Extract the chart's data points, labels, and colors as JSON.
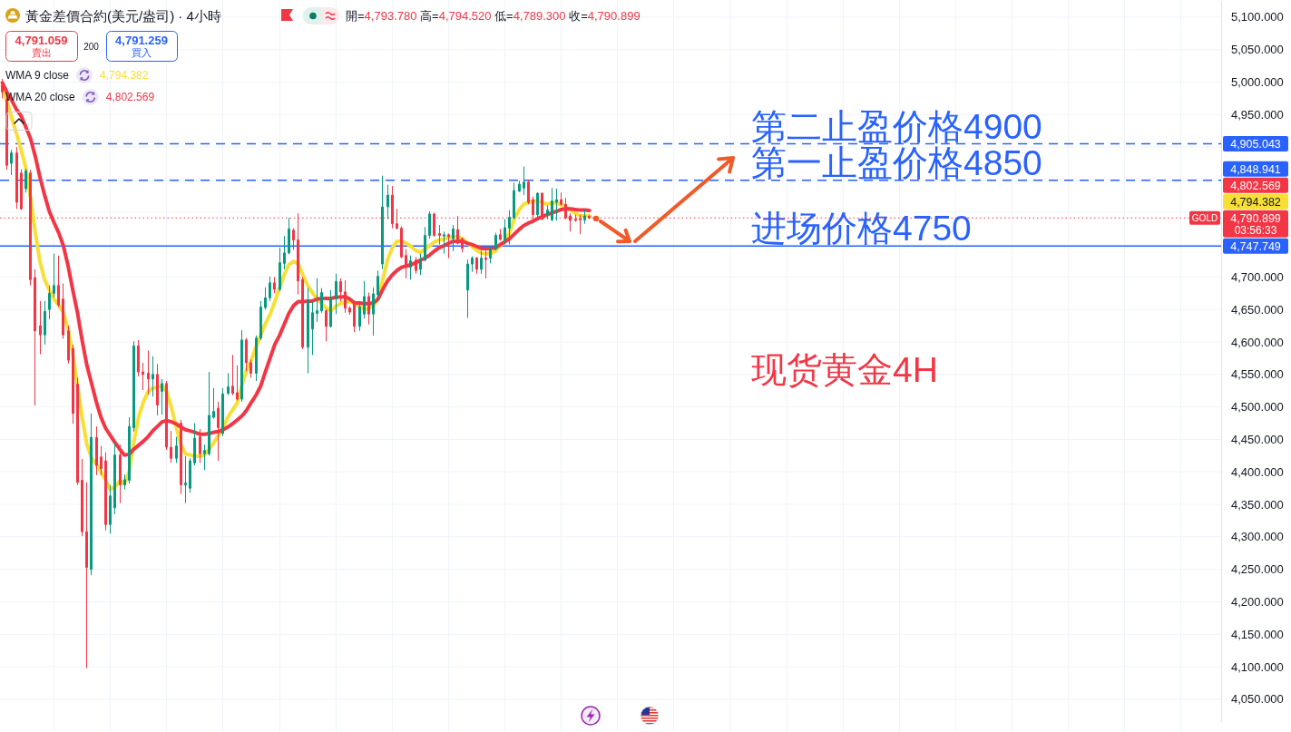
{
  "chart_data": {
    "type": "candlestick",
    "title": "黃金差價合約(美元/盎司) · 4小時",
    "subtitle": "開=4,793.780 高=4,794.520 低=4,789.300 收=4,790.899",
    "categories": [
      null,
      null,
      null,
      null,
      null,
      null,
      null,
      null,
      null,
      null,
      null,
      null,
      null,
      null,
      null,
      null,
      null,
      null,
      null,
      null,
      null,
      null,
      null,
      null,
      null,
      null,
      null,
      null,
      null,
      null,
      null,
      null,
      null,
      null,
      null,
      null,
      null,
      null,
      null,
      null,
      null,
      null,
      null,
      null,
      null,
      null,
      null,
      null,
      null,
      null,
      null,
      null,
      null,
      null,
      null,
      null,
      null,
      null,
      null,
      null,
      null,
      null,
      null,
      null,
      null,
      null,
      null,
      null,
      null,
      null,
      null,
      null,
      null,
      null,
      null,
      null,
      null,
      null,
      null,
      null,
      null,
      null,
      null,
      null,
      null,
      null,
      null,
      null,
      null,
      null,
      null,
      null,
      null,
      null,
      null,
      null,
      null,
      null,
      null,
      null,
      null,
      null,
      null,
      null,
      null,
      null,
      null,
      null,
      null,
      null,
      null,
      null,
      null,
      null,
      null,
      null,
      null,
      null,
      null,
      null,
      null,
      null,
      null,
      null,
      null,
      null,
      null,
      null,
      null,
      null,
      null,
      null,
      null,
      null,
      null,
      null,
      null,
      null,
      null,
      null,
      null,
      null,
      null,
      null,
      null,
      null,
      null,
      null,
      null,
      null,
      null,
      null,
      null,
      null,
      null,
      null,
      null,
      null,
      null,
      null,
      null,
      null,
      null,
      null,
      null,
      null,
      null,
      null,
      null,
      null,
      null,
      null,
      null,
      null,
      null,
      null,
      null,
      null,
      null,
      null,
      null,
      null,
      null,
      null,
      null,
      null,
      null,
      null,
      null,
      null,
      null,
      null,
      null,
      null,
      null,
      null,
      null,
      null,
      null,
      null,
      null,
      null,
      null,
      null,
      null,
      null,
      null,
      null,
      null,
      null,
      null,
      null,
      null,
      null,
      null,
      null,
      null,
      null,
      null,
      null,
      null,
      null,
      null,
      null,
      null,
      null,
      null,
      null,
      null,
      null,
      null,
      null,
      null,
      null,
      null,
      null,
      null,
      null,
      null,
      null,
      null,
      null,
      null,
      null,
      null,
      null,
      null,
      null,
      null,
      null,
      null,
      null,
      null,
      null,
      null,
      null,
      null,
      null,
      null,
      null
    ],
    "ohlc": [
      [
        4995,
        5005,
        4975,
        4985
      ],
      [
        4973,
        4985,
        4865,
        4872
      ],
      [
        4875,
        4896,
        4857,
        4891
      ],
      [
        4891,
        4900,
        4805,
        4815
      ],
      [
        4860,
        4866,
        4803,
        4805
      ],
      [
        4836,
        4867,
        4830,
        4863
      ],
      [
        4860,
        4865,
        4687,
        4696
      ],
      [
        4699,
        4712,
        4502,
        4617
      ],
      [
        4625,
        4663,
        4581,
        4611
      ],
      [
        4611,
        4663,
        4596,
        4647
      ],
      [
        4650,
        4687,
        4635,
        4675
      ],
      [
        4675,
        4736,
        4669,
        4687
      ],
      [
        4687,
        4733,
        4654,
        4657
      ],
      [
        4666,
        4690,
        4605,
        4611
      ],
      [
        4617,
        4625,
        4567,
        4572
      ],
      [
        4590,
        4596,
        4474,
        4490
      ],
      [
        4535,
        4545,
        4380,
        4384
      ],
      [
        4387,
        4420,
        4301,
        4308
      ],
      [
        4308,
        4384,
        4098,
        4253
      ],
      [
        4250,
        4490,
        4241,
        4453
      ],
      [
        4453,
        4470,
        4395,
        4410
      ],
      [
        4423,
        4440,
        4395,
        4405
      ],
      [
        4417,
        4430,
        4310,
        4319
      ],
      [
        4319,
        4380,
        4305,
        4363
      ],
      [
        4345,
        4445,
        4335,
        4426
      ],
      [
        4426,
        4442,
        4352,
        4380
      ],
      [
        4380,
        4396,
        4373,
        4388
      ],
      [
        4387,
        4484,
        4382,
        4470
      ],
      [
        4468,
        4601,
        4462,
        4594
      ],
      [
        4594,
        4603,
        4547,
        4554
      ],
      [
        4554,
        4568,
        4526,
        4550
      ],
      [
        4552,
        4587,
        4519,
        4543
      ],
      [
        4543,
        4578,
        4516,
        4550
      ],
      [
        4550,
        4566,
        4487,
        4503
      ],
      [
        4524,
        4543,
        4488,
        4536
      ],
      [
        4536,
        4540,
        4434,
        4438
      ],
      [
        4438,
        4463,
        4414,
        4421
      ],
      [
        4421,
        4454,
        4414,
        4440
      ],
      [
        4475,
        4480,
        4366,
        4380
      ],
      [
        4380,
        4424,
        4352,
        4383
      ],
      [
        4375,
        4421,
        4368,
        4417
      ],
      [
        4414,
        4475,
        4410,
        4452
      ],
      [
        4454,
        4466,
        4414,
        4428
      ],
      [
        4428,
        4442,
        4403,
        4433
      ],
      [
        4428,
        4554,
        4425,
        4487
      ],
      [
        4484,
        4529,
        4482,
        4493
      ],
      [
        4498,
        4508,
        4417,
        4468
      ],
      [
        4459,
        4529,
        4455,
        4520
      ],
      [
        4521,
        4552,
        4518,
        4531
      ],
      [
        4532,
        4580,
        4518,
        4521
      ],
      [
        4522,
        4564,
        4510,
        4512
      ],
      [
        4512,
        4618,
        4508,
        4603
      ],
      [
        4603,
        4606,
        4555,
        4568
      ],
      [
        4568,
        4573,
        4545,
        4552
      ],
      [
        4552,
        4610,
        4540,
        4606
      ],
      [
        4606,
        4663,
        4603,
        4654
      ],
      [
        4653,
        4684,
        4650,
        4668
      ],
      [
        4668,
        4701,
        4663,
        4691
      ],
      [
        4691,
        4700,
        4675,
        4681
      ],
      [
        4681,
        4745,
        4678,
        4722
      ],
      [
        4721,
        4763,
        4712,
        4737
      ],
      [
        4737,
        4791,
        4735,
        4774
      ],
      [
        4772,
        4775,
        4742,
        4757
      ],
      [
        4757,
        4798,
        4673,
        4694
      ],
      [
        4696,
        4700,
        4589,
        4592
      ],
      [
        4592,
        4683,
        4552,
        4664
      ],
      [
        4620,
        4662,
        4580,
        4645
      ],
      [
        4644,
        4698,
        4631,
        4648
      ],
      [
        4648,
        4683,
        4645,
        4676
      ],
      [
        4648,
        4650,
        4601,
        4624
      ],
      [
        4624,
        4680,
        4622,
        4668
      ],
      [
        4666,
        4705,
        4643,
        4693
      ],
      [
        4693,
        4698,
        4662,
        4677
      ],
      [
        4677,
        4695,
        4645,
        4652
      ],
      [
        4652,
        4655,
        4642,
        4646
      ],
      [
        4659,
        4662,
        4615,
        4624
      ],
      [
        4624,
        4663,
        4617,
        4654
      ],
      [
        4643,
        4694,
        4636,
        4670
      ],
      [
        4670,
        4676,
        4627,
        4643
      ],
      [
        4643,
        4684,
        4610,
        4674
      ],
      [
        4673,
        4710,
        4662,
        4701
      ],
      [
        4720,
        4856,
        4712,
        4808
      ],
      [
        4808,
        4842,
        4789,
        4826
      ],
      [
        4826,
        4840,
        4775,
        4782
      ],
      [
        4782,
        4805,
        4773,
        4775
      ],
      [
        4775,
        4778,
        4729,
        4731
      ],
      [
        4733,
        4743,
        4698,
        4715
      ],
      [
        4715,
        4733,
        4696,
        4725
      ],
      [
        4726,
        4731,
        4705,
        4710
      ],
      [
        4712,
        4736,
        4703,
        4727
      ],
      [
        4726,
        4777,
        4724,
        4764
      ],
      [
        4764,
        4801,
        4759,
        4797
      ],
      [
        4797,
        4799,
        4762,
        4764
      ],
      [
        4767,
        4780,
        4750,
        4764
      ],
      [
        4763,
        4770,
        4736,
        4765
      ],
      [
        4765,
        4767,
        4729,
        4762
      ],
      [
        4759,
        4780,
        4740,
        4774
      ],
      [
        4773,
        4794,
        4750,
        4752
      ],
      [
        4759,
        4761,
        4738,
        4744
      ],
      [
        4680,
        4727,
        4637,
        4720
      ],
      [
        4720,
        4732,
        4708,
        4729
      ],
      [
        4729,
        4731,
        4705,
        4712
      ],
      [
        4712,
        4740,
        4705,
        4729
      ],
      [
        4729,
        4747,
        4698,
        4727
      ],
      [
        4729,
        4747,
        4721,
        4743
      ],
      [
        4743,
        4768,
        4741,
        4764
      ],
      [
        4765,
        4774,
        4756,
        4758
      ],
      [
        4757,
        4789,
        4750,
        4776
      ],
      [
        4775,
        4803,
        4750,
        4792
      ],
      [
        4791,
        4845,
        4789,
        4833
      ],
      [
        4832,
        4848,
        4831,
        4843
      ],
      [
        4837,
        4870,
        4826,
        4846
      ],
      [
        4846,
        4850,
        4812,
        4815
      ],
      [
        4819,
        4824,
        4788,
        4796
      ],
      [
        4796,
        4830,
        4788,
        4829
      ],
      [
        4829,
        4830,
        4788,
        4789
      ],
      [
        4796,
        4810,
        4789,
        4803
      ],
      [
        4788,
        4837,
        4786,
        4817
      ],
      [
        4815,
        4836,
        4787,
        4819
      ],
      [
        4819,
        4830,
        4810,
        4812
      ],
      [
        4812,
        4822,
        4789,
        4791
      ],
      [
        4794,
        4798,
        4770,
        4787
      ],
      [
        4789,
        4796,
        4785,
        4787
      ],
      [
        4790,
        4796,
        4766,
        4788
      ],
      [
        4788,
        4804,
        4782,
        4794
      ],
      [
        4793.78,
        4794.52,
        4789.3,
        4790.899
      ],
      null,
      null,
      null,
      null,
      null,
      null,
      null,
      null,
      null,
      null,
      null,
      null,
      null,
      null,
      null,
      null,
      null,
      null,
      null,
      null,
      null,
      null,
      null,
      null,
      null,
      null,
      null,
      null,
      null,
      null,
      null,
      null,
      null,
      null,
      null,
      null,
      null,
      null,
      null,
      null,
      null,
      null,
      null,
      null,
      null,
      null,
      null,
      null,
      null,
      null,
      null,
      null,
      null,
      null,
      null,
      null,
      null,
      null,
      null,
      null,
      null,
      null,
      null,
      null,
      null,
      null,
      null,
      null,
      null,
      null,
      null,
      null,
      null,
      null,
      null,
      null,
      null,
      null,
      null,
      null,
      null,
      null,
      null,
      null,
      null,
      null,
      null,
      null,
      null,
      null,
      null,
      null,
      null,
      null,
      null,
      null,
      null,
      null,
      null,
      null,
      null,
      null,
      null,
      null,
      null,
      null,
      null,
      null,
      null,
      null,
      null,
      null,
      null,
      null,
      null,
      null,
      null,
      null,
      null,
      null,
      null,
      null,
      null,
      null,
      null,
      null,
      null,
      null,
      null,
      null,
      null,
      null,
      null,
      null
    ],
    "colors": [
      "#f23645",
      "#f23645",
      "#089981",
      "#f23645",
      "#f23645",
      "#089981",
      "#f23645",
      "#f23645",
      "#f23645",
      "#089981",
      "#089981",
      "#089981",
      "#f23645",
      "#f23645",
      "#f23645",
      "#f23645",
      "#f23645",
      "#f23645",
      "#f23645",
      "#089981",
      "#f23645",
      "#f23645",
      "#f23645",
      "#089981",
      "#089981",
      "#f23645",
      "#089981",
      "#089981",
      "#089981",
      "#f23645",
      "#f23645",
      "#f23645",
      "#089981",
      "#f23645",
      "#089981",
      "#f23645",
      "#f23645",
      "#089981",
      "#f23645",
      "#089981",
      "#089981",
      "#089981",
      "#f23645",
      "#089981",
      "#089981",
      "#089981",
      "#f23645",
      "#089981",
      "#089981",
      "#f23645",
      "#f23645",
      "#089981",
      "#f23645",
      "#f23645",
      "#089981",
      "#089981",
      "#089981",
      "#089981",
      "#f23645",
      "#089981",
      "#089981",
      "#089981",
      "#f23645",
      "#f23645",
      "#f23645",
      "#089981",
      "#089981",
      "#089981",
      "#089981",
      "#f23645",
      "#089981",
      "#089981",
      "#f23645",
      "#f23645",
      "#f23645",
      "#f23645",
      "#089981",
      "#089981",
      "#f23645",
      "#089981",
      "#089981",
      "#089981",
      "#089981",
      "#f23645",
      "#f23645",
      "#f23645",
      "#f23645",
      "#089981",
      "#f23645",
      "#089981",
      "#089981",
      "#089981",
      "#f23645",
      "#f23645",
      "#089981",
      "#f23645",
      "#089981",
      "#f23645",
      "#f23645",
      "#089981",
      "#089981",
      "#f23645",
      "#089981",
      "#f23645",
      "#089981",
      "#089981",
      "#f23645",
      "#089981",
      "#089981",
      "#089981",
      "#089981",
      "#089981",
      "#f23645",
      "#f23645",
      "#089981",
      "#f23645",
      "#089981",
      "#089981",
      "#089981",
      "#f23645",
      "#f23645",
      "#f23645",
      "#f23645",
      "#f23645",
      "#089981",
      "#f23645",
      null,
      null,
      null,
      null,
      null,
      null,
      null,
      null,
      null,
      null,
      null,
      null,
      null,
      null,
      null,
      null,
      null,
      null,
      null,
      null,
      null,
      null,
      null,
      null,
      null,
      null,
      null,
      null,
      null,
      null,
      null,
      null,
      null,
      null,
      null,
      null,
      null,
      null,
      null,
      null,
      null,
      null,
      null,
      null,
      null,
      null,
      null,
      null,
      null,
      null,
      null,
      null,
      null,
      null,
      null,
      null,
      null,
      null,
      null,
      null,
      null,
      null,
      null,
      null,
      null,
      null,
      null,
      null,
      null,
      null,
      null,
      null,
      null,
      null,
      null,
      null,
      null,
      null,
      null,
      null,
      null,
      null,
      null,
      null,
      null,
      null,
      null,
      null,
      null,
      null,
      null,
      null,
      null,
      null,
      null,
      null,
      null,
      null,
      null,
      null,
      null,
      null,
      null,
      null,
      null,
      null,
      null,
      null,
      null,
      null,
      null,
      null,
      null,
      null,
      null,
      null,
      null,
      null,
      null,
      null,
      null,
      null,
      null,
      null,
      null,
      null,
      null,
      null,
      null,
      null,
      null,
      null,
      null,
      null
    ],
    "series": [
      {
        "type": "line",
        "name": "WMA 9 close",
        "color": "#f7df35",
        "values": [
          4994,
          4970,
          4945,
          4921,
          4896,
          4868,
          4822,
          4769,
          4724,
          4696,
          4680,
          4666,
          4657,
          4645,
          4620,
          4582,
          4533,
          4484,
          4442,
          4421,
          4412,
          4400,
          4387,
          4373,
          4377,
          4386,
          4382,
          4400,
          4446,
          4484,
          4507,
          4523,
          4529,
          4530,
          4533,
          4523,
          4499,
          4470,
          4442,
          4428,
          4426,
          4424,
          4424,
          4426,
          4434,
          4445,
          4456,
          4469,
          4484,
          4495,
          4506,
          4533,
          4557,
          4572,
          4592,
          4610,
          4628,
          4642,
          4662,
          4683,
          4703,
          4719,
          4724,
          4720,
          4703,
          4687,
          4676,
          4666,
          4659,
          4652,
          4648,
          4655,
          4659,
          4662,
          4662,
          4659,
          4655,
          4650,
          4652,
          4655,
          4666,
          4696,
          4726,
          4745,
          4755,
          4755,
          4752,
          4747,
          4741,
          4738,
          4743,
          4748,
          4754,
          4757,
          4758,
          4761,
          4762,
          4762,
          4759,
          4752,
          4747,
          4741,
          4737,
          4736,
          4736,
          4740,
          4748,
          4755,
          4768,
          4789,
          4803,
          4812,
          4815,
          4817,
          4817,
          4815,
          4812,
          4814,
          4814,
          4811,
          4808,
          4803,
          4798,
          4794,
          4794,
          4794.382,
          null,
          null,
          null,
          null,
          null,
          null,
          null,
          null,
          null,
          null,
          null,
          null,
          null,
          null,
          null,
          null,
          null,
          null,
          null,
          null,
          null,
          null,
          null,
          null,
          null,
          null,
          null,
          null,
          null,
          null,
          null,
          null,
          null,
          null,
          null,
          null,
          null,
          null,
          null,
          null,
          null,
          null,
          null,
          null,
          null,
          null,
          null,
          null,
          null,
          null,
          null,
          null,
          null,
          null,
          null,
          null,
          null,
          null,
          null,
          null,
          null,
          null,
          null,
          null,
          null,
          null,
          null,
          null,
          null,
          null,
          null,
          null,
          null,
          null,
          null,
          null,
          null,
          null,
          null,
          null,
          null,
          null,
          null,
          null,
          null,
          null,
          null,
          null,
          null,
          null,
          null,
          null,
          null,
          null,
          null,
          null,
          null,
          null,
          null,
          null,
          null,
          null,
          null,
          null,
          null,
          null,
          null,
          null,
          null,
          null,
          null,
          null,
          null,
          null,
          null,
          null,
          null,
          null,
          null,
          null,
          null,
          null,
          null,
          null,
          null,
          null,
          null,
          null,
          null,
          null,
          null,
          null,
          null,
          null
        ]
      },
      {
        "type": "line",
        "name": "WMA 20 close",
        "color": "#f23645",
        "values": [
          4999,
          4984,
          4972,
          4958,
          4948,
          4931,
          4913,
          4886,
          4854,
          4826,
          4801,
          4784,
          4768,
          4748,
          4717,
          4680,
          4645,
          4602,
          4564,
          4536,
          4508,
          4484,
          4467,
          4456,
          4445,
          4435,
          4426,
          4427,
          4435,
          4441,
          4447,
          4454,
          4463,
          4470,
          4477,
          4479,
          4477,
          4474,
          4469,
          4465,
          4463,
          4461,
          4458,
          4458,
          4459,
          4461,
          4462,
          4465,
          4469,
          4474,
          4480,
          4486,
          4495,
          4507,
          4518,
          4532,
          4554,
          4575,
          4596,
          4610,
          4627,
          4644,
          4656,
          4662,
          4662,
          4663,
          4663,
          4666,
          4667,
          4667,
          4667,
          4669,
          4669,
          4670,
          4666,
          4660,
          4660,
          4659,
          4659,
          4660,
          4666,
          4681,
          4694,
          4703,
          4710,
          4715,
          4717,
          4719,
          4722,
          4726,
          4729,
          4734,
          4740,
          4745,
          4748,
          4752,
          4755,
          4755,
          4755,
          4752,
          4750,
          4747,
          4744,
          4744,
          4744,
          4745,
          4750,
          4754,
          4759,
          4766,
          4773,
          4779,
          4783,
          4786,
          4790,
          4793,
          4796,
          4799,
          4801,
          4804,
          4805,
          4805,
          4804,
          4803,
          4803,
          4802.569,
          null,
          null,
          null,
          null,
          null,
          null,
          null,
          null,
          null,
          null,
          null,
          null,
          null,
          null,
          null,
          null,
          null,
          null,
          null,
          null,
          null,
          null,
          null,
          null,
          null,
          null,
          null,
          null,
          null,
          null,
          null,
          null,
          null,
          null,
          null,
          null,
          null,
          null,
          null,
          null,
          null,
          null,
          null,
          null,
          null,
          null,
          null,
          null,
          null,
          null,
          null,
          null,
          null,
          null,
          null,
          null,
          null,
          null,
          null,
          null,
          null,
          null,
          null,
          null,
          null,
          null,
          null,
          null,
          null,
          null,
          null,
          null,
          null,
          null,
          null,
          null,
          null,
          null,
          null,
          null,
          null,
          null,
          null,
          null,
          null,
          null,
          null,
          null,
          null,
          null,
          null,
          null,
          null,
          null,
          null,
          null,
          null,
          null,
          null,
          null,
          null,
          null,
          null,
          null,
          null,
          null,
          null,
          null,
          null,
          null,
          null,
          null,
          null,
          null,
          null,
          null,
          null,
          null,
          null,
          null,
          null,
          null,
          null,
          null,
          null,
          null,
          null,
          null,
          null,
          null,
          null,
          null,
          null,
          null
        ]
      }
    ],
    "ylim": [
      4015,
      5125
    ],
    "yticks": [
      {
        "value": 4050,
        "label": "4,050.000"
      },
      {
        "value": 4100,
        "label": "4,100.000"
      },
      {
        "value": 4150,
        "label": "4,150.000"
      },
      {
        "value": 4200,
        "label": "4,200.000"
      },
      {
        "value": 4250,
        "label": "4,250.000"
      },
      {
        "value": 4300,
        "label": "4,300.000"
      },
      {
        "value": 4350,
        "label": "4,350.000"
      },
      {
        "value": 4400,
        "label": "4,400.000"
      },
      {
        "value": 4450,
        "label": "4,450.000"
      },
      {
        "value": 4500,
        "label": "4,500.000"
      },
      {
        "value": 4550,
        "label": "4,550.000"
      },
      {
        "value": 4600,
        "label": "4,600.000"
      },
      {
        "value": 4650,
        "label": "4,650.000"
      },
      {
        "value": 4700,
        "label": "4,700.000"
      },
      {
        "value": 4750,
        "label": null
      },
      {
        "value": 4800,
        "label": null
      },
      {
        "value": 4850,
        "label": null
      },
      {
        "value": 4900,
        "label": null
      },
      {
        "value": 4950,
        "label": "4,950.000"
      },
      {
        "value": 5000,
        "label": "5,000.000"
      },
      {
        "value": 5050,
        "label": "5,050.000"
      },
      {
        "value": 5100,
        "label": "5,100.000"
      }
    ],
    "tick_labels": "y",
    "grid": true,
    "legend": "top left",
    "ref_lines": [
      {
        "axis": "y",
        "value": 4905.043,
        "label": "第二止盈价格4900",
        "color": "#2962ff",
        "line_style": "dashed"
      },
      {
        "axis": "y",
        "value": 4848.941,
        "label": "第一止盈价格4850",
        "color": "#2962ff",
        "line_style": "dashed"
      },
      {
        "axis": "y",
        "value": 4747.749,
        "label": "进场价格4750",
        "color": "#2962ff",
        "line_style": "solid"
      },
      {
        "axis": "y",
        "value": 4790.899,
        "color": "#f23645",
        "line_style": "dotted"
      }
    ],
    "annotations": [
      "4,791.059",
      "賣出",
      "200",
      "4,791.259",
      "買入",
      "现货黄金4H",
      "GOLD",
      "03:56:33",
      "4,794.382",
      "4,802.569",
      "4,905.043",
      "4,848.941",
      "4,747.749",
      "4,790.899",
      "4,794.382",
      "4,802.569"
    ]
  }
}
